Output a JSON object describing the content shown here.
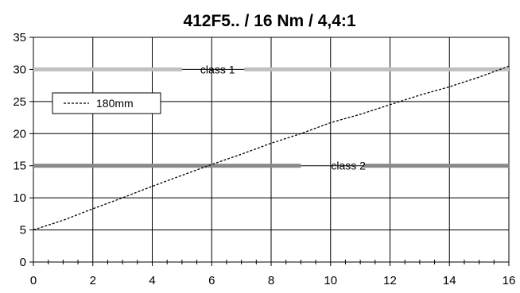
{
  "chart_data": {
    "type": "line",
    "title": "412F5.. / 16 Nm / 4,4:1",
    "xlabel": "",
    "ylabel": "",
    "xlim": [
      0,
      16
    ],
    "ylim": [
      0,
      35
    ],
    "x_ticks": [
      0,
      2,
      4,
      6,
      8,
      10,
      12,
      14,
      16
    ],
    "y_ticks": [
      0,
      5,
      10,
      15,
      20,
      25,
      30,
      35
    ],
    "grid": true,
    "legend_position": "upper-left",
    "series": [
      {
        "name": "180mm",
        "style": "dashed",
        "color": "#000000",
        "x": [
          0,
          1,
          2,
          3,
          4,
          5,
          6,
          7,
          8,
          9,
          10,
          11,
          12,
          13,
          14,
          15,
          16
        ],
        "y": [
          5.0,
          6.5,
          8.3,
          10.0,
          11.8,
          13.5,
          15.2,
          16.8,
          18.5,
          20.0,
          21.7,
          23.0,
          24.5,
          26.0,
          27.3,
          28.8,
          30.5
        ]
      }
    ],
    "reference_lines": [
      {
        "label": "class 1",
        "y": 30,
        "color": "#c0c0c0"
      },
      {
        "label": "class 2",
        "y": 15,
        "color": "#888888"
      }
    ]
  }
}
